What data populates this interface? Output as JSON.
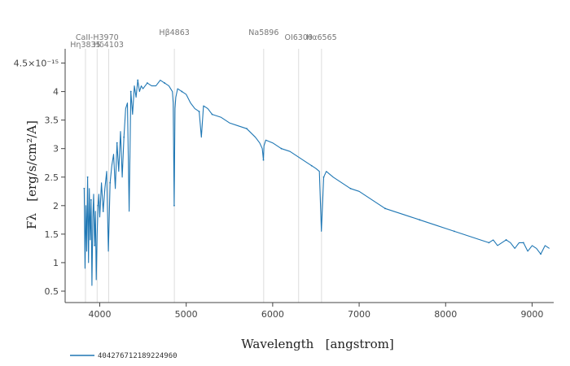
{
  "chart_data": {
    "type": "line",
    "title": "",
    "xlabel": "Wavelength   [angstrom]",
    "ylabel": "Fλ   [erg/s/cm²/A]",
    "xlim": [
      3600,
      9250
    ],
    "ylim": [
      0.3,
      4.75
    ],
    "x_ticks": [
      4000,
      5000,
      6000,
      7000,
      8000,
      9000
    ],
    "x_tick_labels": [
      "4000",
      "5000",
      "6000",
      "7000",
      "8000",
      "9000"
    ],
    "y_ticks": [
      0.5,
      1,
      1.5,
      2,
      2.5,
      3,
      3.5,
      4,
      4.5
    ],
    "y_tick_labels": [
      "0.5",
      "1",
      "1.5",
      "2",
      "2.5",
      "3",
      "3.5",
      "4",
      "4.5×10⁻¹⁵"
    ],
    "y_unit_scale": "1e-15",
    "grid": false,
    "legend_position": "bottom-left",
    "series": [
      {
        "name": "404276712189224960",
        "color": "#1f77b4",
        "x": [
          3820,
          3830,
          3840,
          3850,
          3860,
          3870,
          3880,
          3890,
          3900,
          3910,
          3920,
          3930,
          3940,
          3950,
          3960,
          3970,
          3980,
          3990,
          4000,
          4020,
          4040,
          4060,
          4080,
          4100,
          4120,
          4140,
          4160,
          4180,
          4200,
          4220,
          4240,
          4260,
          4280,
          4300,
          4320,
          4340,
          4360,
          4380,
          4400,
          4420,
          4440,
          4460,
          4480,
          4500,
          4550,
          4600,
          4650,
          4700,
          4750,
          4800,
          4840,
          4850,
          4861,
          4870,
          4880,
          4900,
          4950,
          5000,
          5050,
          5100,
          5150,
          5175,
          5200,
          5250,
          5300,
          5400,
          5500,
          5600,
          5700,
          5800,
          5850,
          5880,
          5893,
          5900,
          5920,
          6000,
          6100,
          6200,
          6300,
          6400,
          6450,
          6500,
          6540,
          6563,
          6590,
          6620,
          6700,
          6800,
          6900,
          7000,
          7100,
          7200,
          7300,
          7400,
          7500,
          7600,
          7700,
          7800,
          7900,
          8000,
          8100,
          8200,
          8300,
          8400,
          8500,
          8550,
          8600,
          8650,
          8700,
          8750,
          8800,
          8850,
          8900,
          8950,
          9000,
          9050,
          9100,
          9150,
          9200
        ],
        "values": [
          2.3,
          0.9,
          2.0,
          1.2,
          2.5,
          1.0,
          2.3,
          1.4,
          2.1,
          0.6,
          1.8,
          2.2,
          1.3,
          1.9,
          0.7,
          1.5,
          2.0,
          2.2,
          1.8,
          2.4,
          1.9,
          2.3,
          2.6,
          1.2,
          2.4,
          2.7,
          2.9,
          2.3,
          3.1,
          2.6,
          3.3,
          2.5,
          3.2,
          3.7,
          3.8,
          1.9,
          4.0,
          3.6,
          4.1,
          3.9,
          4.2,
          4.0,
          4.1,
          4.05,
          4.15,
          4.1,
          4.1,
          4.2,
          4.15,
          4.1,
          4.0,
          3.8,
          2.0,
          3.7,
          3.9,
          4.05,
          4.0,
          3.95,
          3.8,
          3.7,
          3.65,
          3.2,
          3.75,
          3.7,
          3.6,
          3.55,
          3.45,
          3.4,
          3.35,
          3.2,
          3.1,
          3.0,
          2.8,
          3.05,
          3.15,
          3.1,
          3.0,
          2.95,
          2.85,
          2.75,
          2.7,
          2.65,
          2.6,
          1.55,
          2.5,
          2.6,
          2.5,
          2.4,
          2.3,
          2.25,
          2.15,
          2.05,
          1.95,
          1.9,
          1.85,
          1.8,
          1.75,
          1.7,
          1.65,
          1.6,
          1.55,
          1.5,
          1.45,
          1.4,
          1.35,
          1.4,
          1.3,
          1.35,
          1.4,
          1.35,
          1.25,
          1.35,
          1.35,
          1.2,
          1.3,
          1.25,
          1.15,
          1.3,
          1.25
        ]
      }
    ],
    "spectral_lines": [
      {
        "label": "Hη3835",
        "wavelength": 3835,
        "label_row": 2
      },
      {
        "label": "CaII-H3970",
        "wavelength": 3970,
        "label_row": 1
      },
      {
        "label": "Hδ4103",
        "wavelength": 4103,
        "label_row": 2
      },
      {
        "label": "Hβ4863",
        "wavelength": 4863,
        "label_row": 0
      },
      {
        "label": "Na5896",
        "wavelength": 5896,
        "label_row": 0
      },
      {
        "label": "OI6300",
        "wavelength": 6300,
        "label_row": 1
      },
      {
        "label": "Hα6565",
        "wavelength": 6565,
        "label_row": 1
      }
    ]
  }
}
